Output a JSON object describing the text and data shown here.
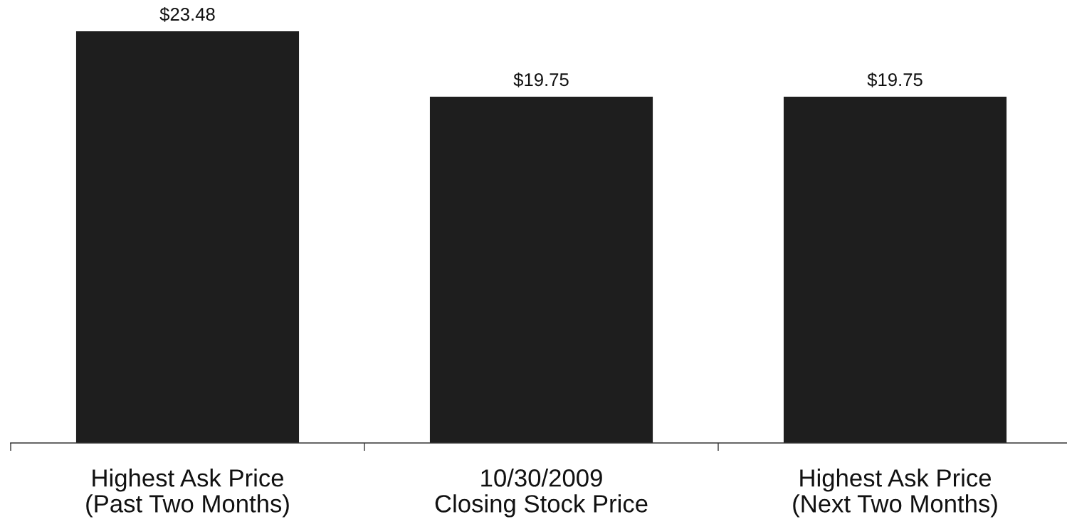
{
  "chart_data": {
    "type": "bar",
    "categories": [
      "Highest Ask Price\n(Past Two Months)",
      "10/30/2009\nClosing Stock Price",
      "Highest Ask Price\n(Next Two Months)"
    ],
    "values": [
      23.48,
      19.75,
      19.75
    ],
    "color": "#1e1e1e",
    "value_labels": [
      "$23.48",
      "$19.75",
      "$19.75"
    ],
    "tick_labels": "x"
  }
}
